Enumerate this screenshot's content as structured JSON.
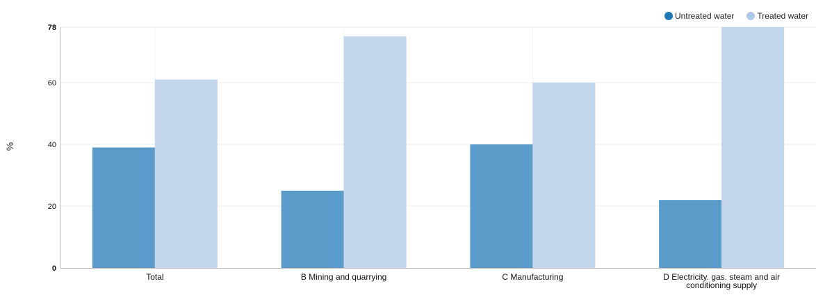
{
  "chart_data": {
    "type": "bar",
    "categories": [
      "Total",
      "B Mining and quarrying",
      "C Manufacturing",
      "D Electricity. gas. steam and air conditioning supply"
    ],
    "category_lines": [
      [
        "Total"
      ],
      [
        "B Mining and quarrying"
      ],
      [
        "C Manufacturing"
      ],
      [
        "D Electricity. gas. steam and air",
        "conditioning supply"
      ]
    ],
    "series": [
      {
        "name": "Untreated water",
        "color": "#5b9bc9",
        "legend_color": "#1f77b4",
        "values": [
          39,
          25,
          40,
          22
        ]
      },
      {
        "name": "Treated water",
        "color": "#c4d6ec",
        "legend_color": "#aec7e8",
        "values": [
          61,
          75,
          60,
          78
        ]
      }
    ],
    "yticks": [
      0,
      20,
      40,
      60,
      78
    ],
    "ylim": [
      0,
      78
    ],
    "ylabel": "%",
    "xlabel": "",
    "title": "",
    "grid": true,
    "legend_position": "top-right"
  }
}
